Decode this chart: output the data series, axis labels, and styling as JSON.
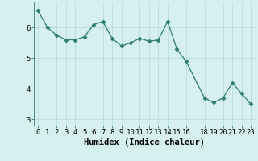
{
  "x": [
    0,
    1,
    2,
    3,
    4,
    5,
    6,
    7,
    8,
    9,
    10,
    11,
    12,
    13,
    14,
    15,
    16,
    18,
    19,
    20,
    21,
    22,
    23
  ],
  "y": [
    6.55,
    6.0,
    5.75,
    5.6,
    5.6,
    5.7,
    6.1,
    6.2,
    5.65,
    5.4,
    5.5,
    5.65,
    5.55,
    5.6,
    6.2,
    5.3,
    4.9,
    3.7,
    3.55,
    3.7,
    4.2,
    3.85,
    3.5
  ],
  "line_color": "#2e7d6e",
  "marker": "D",
  "marker_size": 2.5,
  "bg_color": "#d5f0ee",
  "grid_color": "#b8ddd9",
  "xlabel": "Humidex (Indice chaleur)",
  "xticks": [
    0,
    1,
    2,
    3,
    4,
    5,
    6,
    7,
    8,
    9,
    10,
    11,
    12,
    13,
    14,
    15,
    16,
    18,
    19,
    20,
    21,
    22,
    23
  ],
  "xtick_labels": [
    "0",
    "1",
    "2",
    "3",
    "4",
    "5",
    "6",
    "7",
    "8",
    "9",
    "10",
    "11",
    "12",
    "13",
    "14",
    "15",
    "16",
    "18",
    "19",
    "20",
    "21",
    "22",
    "23"
  ],
  "yticks": [
    3,
    4,
    5,
    6
  ],
  "ylim": [
    2.8,
    6.85
  ],
  "xlim": [
    -0.5,
    23.5
  ],
  "tick_fontsize": 6.5,
  "label_fontsize": 7.5,
  "axis_color": "#4a8a80"
}
